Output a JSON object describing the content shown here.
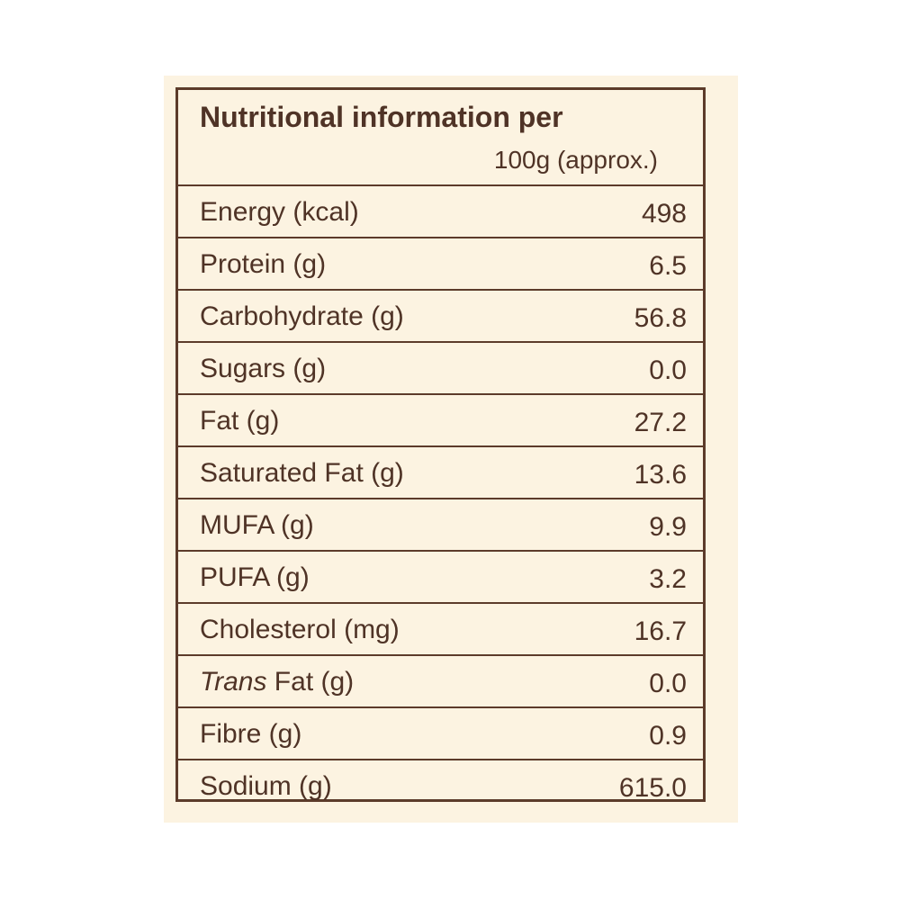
{
  "panel": {
    "title": "Nutritional information per",
    "subtitle": "100g (approx.)"
  },
  "rows": [
    {
      "label": "Energy (kcal)",
      "value": "498"
    },
    {
      "label": "Protein (g)",
      "value": "6.5"
    },
    {
      "label": "Carbohydrate (g)",
      "value": "56.8"
    },
    {
      "label": "Sugars (g)",
      "value": "0.0"
    },
    {
      "label": "Fat (g)",
      "value": "27.2"
    },
    {
      "label": "Saturated Fat (g)",
      "value": "13.6"
    },
    {
      "label": "MUFA (g)",
      "value": "9.9"
    },
    {
      "label": "PUFA (g)",
      "value": "3.2"
    },
    {
      "label": "Cholesterol (mg)",
      "value": "16.7"
    },
    {
      "label_italic": "Trans",
      "label_rest": " Fat (g)",
      "value": "0.0"
    },
    {
      "label": "Fibre (g)",
      "value": "0.9"
    },
    {
      "label": "Sodium (g)",
      "value": "615.0"
    }
  ],
  "colors": {
    "background": "#fcf3e1",
    "border": "#5c3b2a",
    "text": "#4f3326"
  }
}
